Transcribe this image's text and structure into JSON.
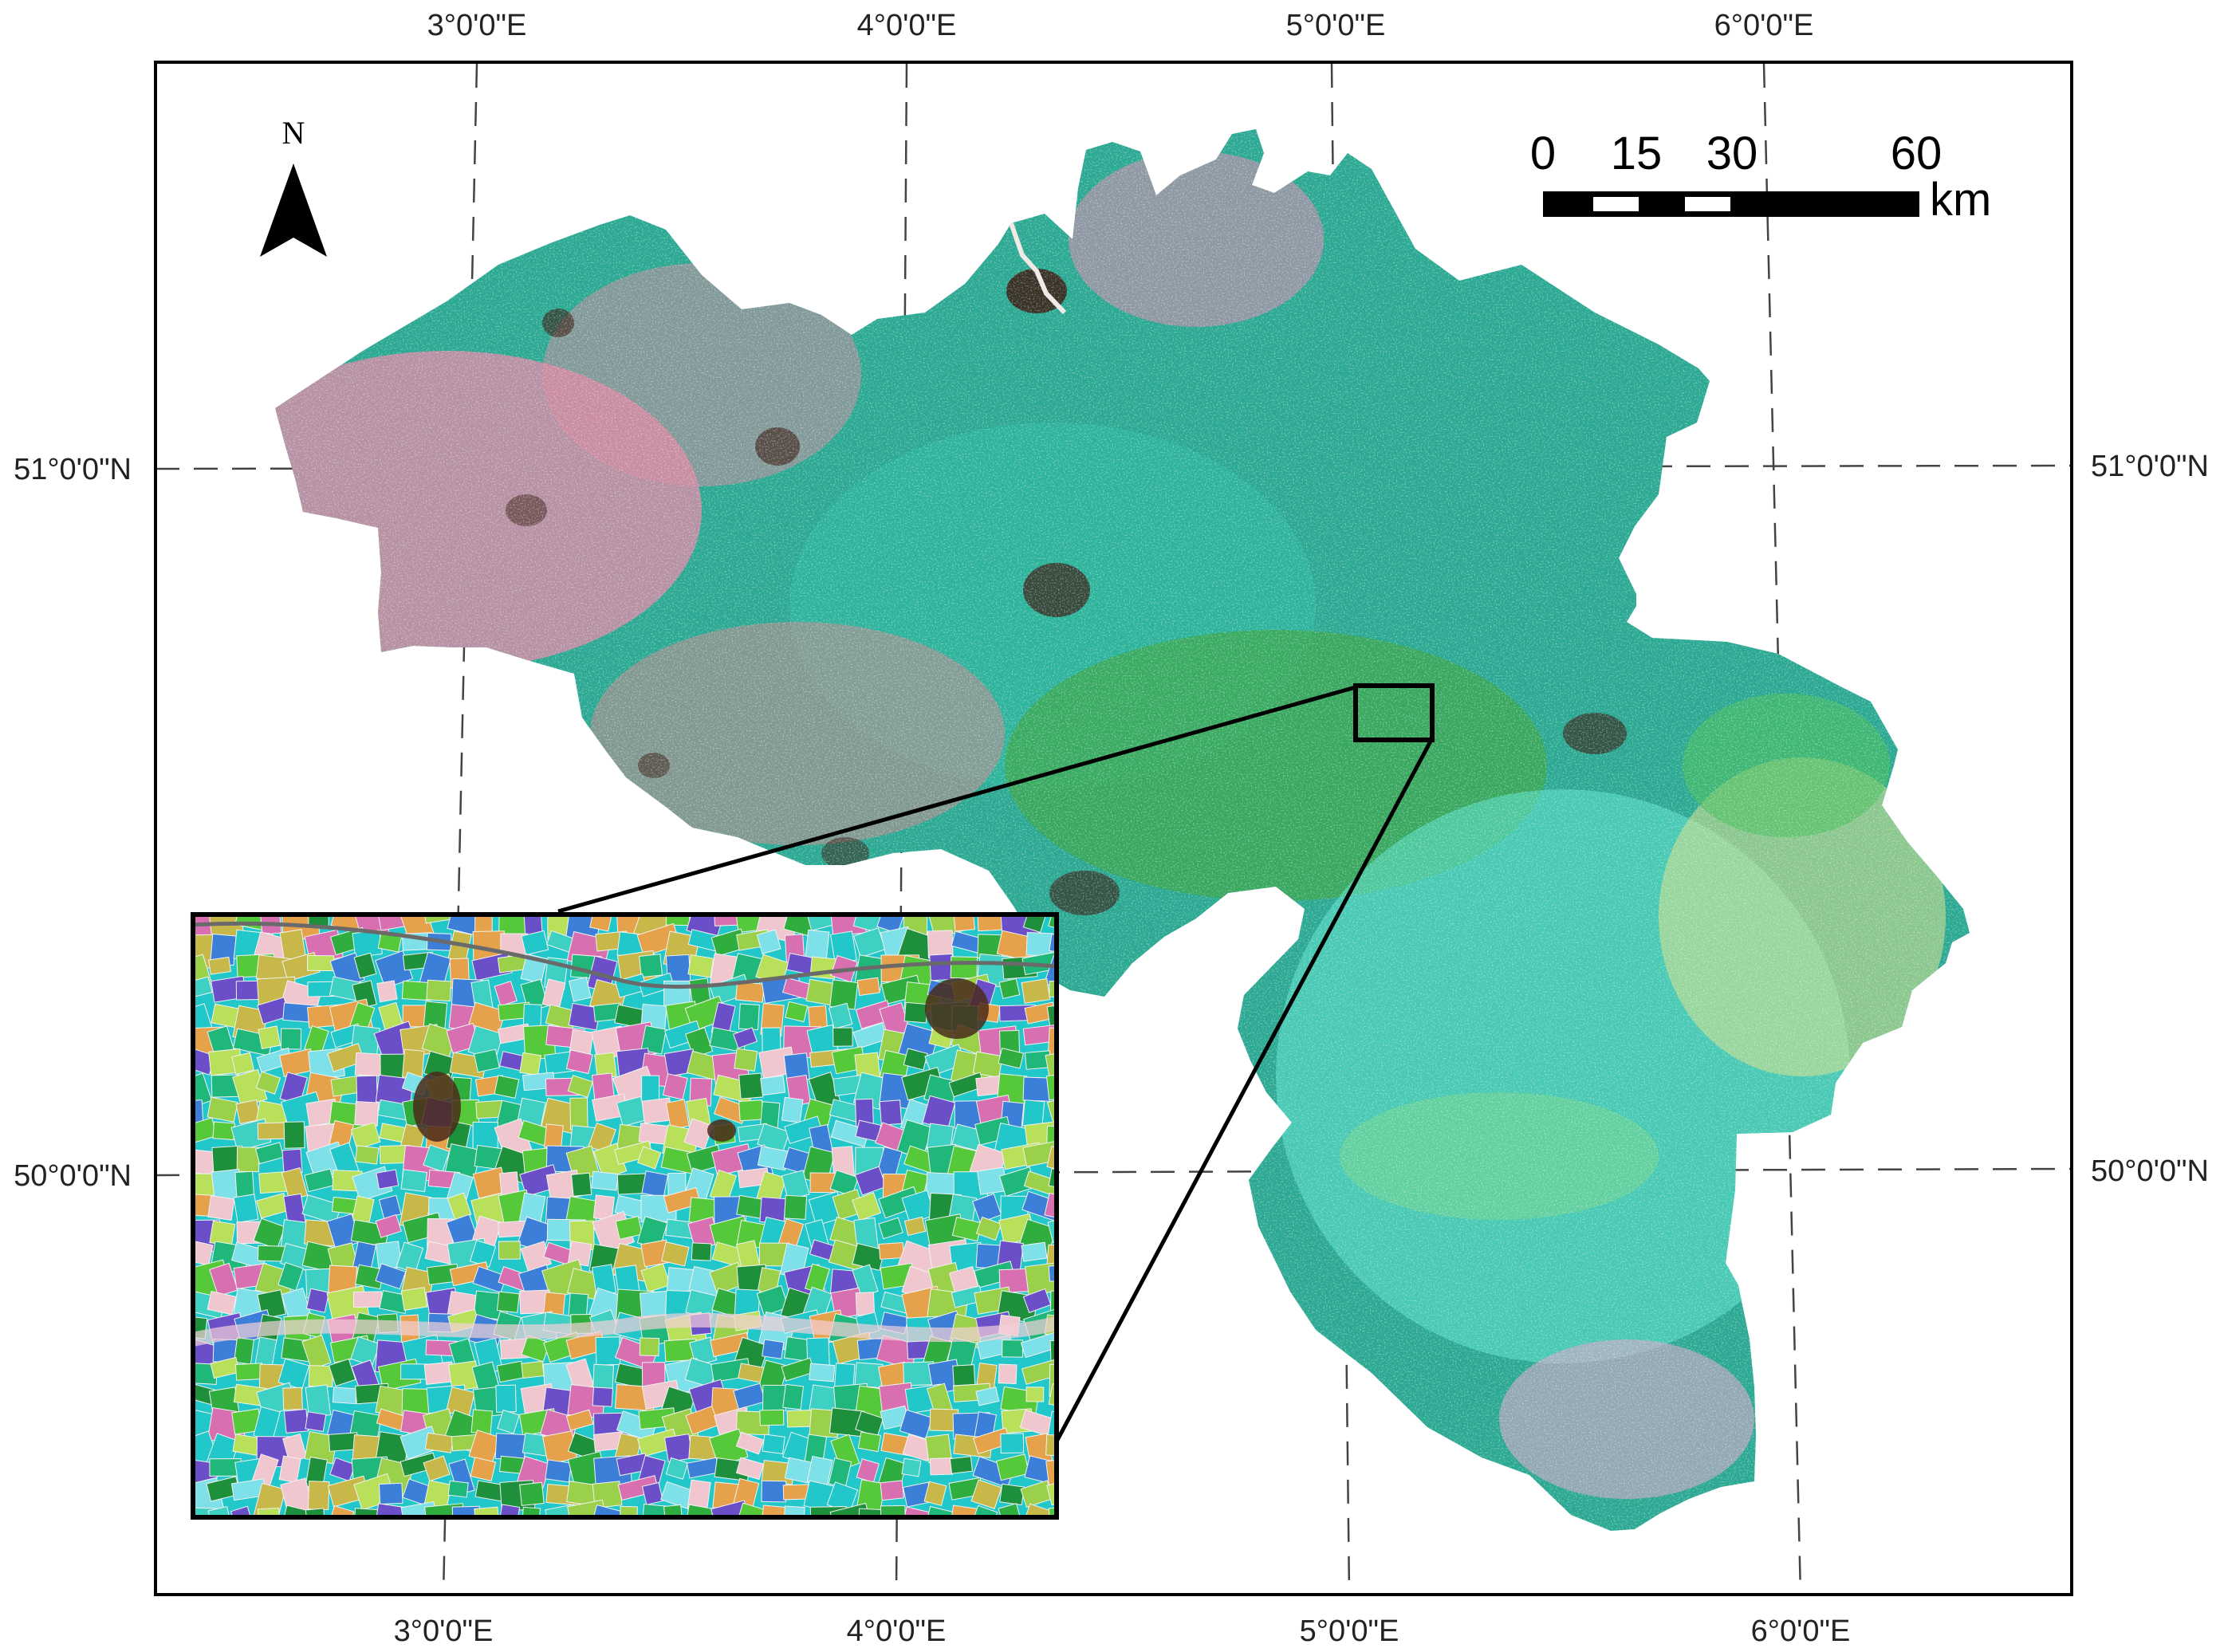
{
  "map": {
    "graticule": {
      "lon_labels": [
        "3°0'0\"E",
        "4°0'0\"E",
        "5°0'0\"E",
        "6°0'0\"E"
      ],
      "lat_labels": [
        "51°0'0\"N",
        "50°0'0\"N"
      ]
    },
    "north_arrow": {
      "label": "N"
    },
    "scale_bar": {
      "ticks": [
        "0",
        "15",
        "30",
        "60"
      ],
      "unit": "km"
    },
    "colors": {
      "frame": "#000000",
      "graticule": "#444444",
      "land_pink": "#e58aa8",
      "land_teal": "#2fb8a0",
      "land_green": "#3ea64a",
      "land_cyan": "#5fe3d0",
      "urban": "#3a1d12",
      "inset_bg": "#21c7c9"
    }
  }
}
